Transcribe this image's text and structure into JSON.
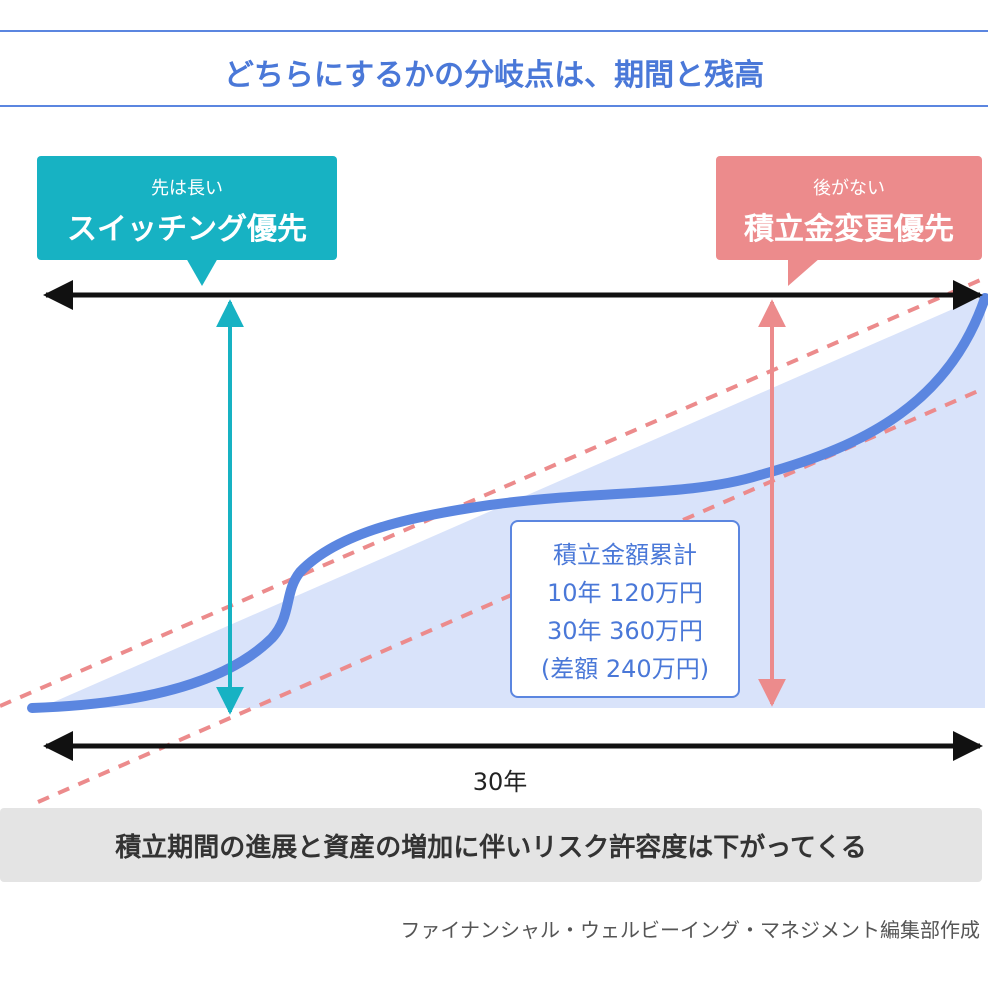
{
  "title": "どちらにするかの分岐点は、期間と残高",
  "callouts": {
    "left": {
      "sub": "先は長い",
      "main": "スイッチング優先",
      "color": "#17b2c3"
    },
    "right": {
      "sub": "後がない",
      "main": "積立金変更優先",
      "color": "#ec8b8c"
    }
  },
  "summary": {
    "heading": "積立金額累計",
    "line_10y": "10年 120万円",
    "line_30y": "30年 360万円",
    "difference": "(差額 240万円)"
  },
  "period_label": "30年",
  "bottom_message": "積立期間の進展と資産の増加に伴いリスク許容度は下がってくる",
  "credit": "ファイナンシャル・ウェルビーイング・マネジメント編集部作成",
  "colors": {
    "accent_blue": "#4a78d8",
    "curve": "#5b86e0",
    "area_fill": "#d9e3fa",
    "teal": "#17b2c3",
    "pink": "#ec8b8c"
  }
}
